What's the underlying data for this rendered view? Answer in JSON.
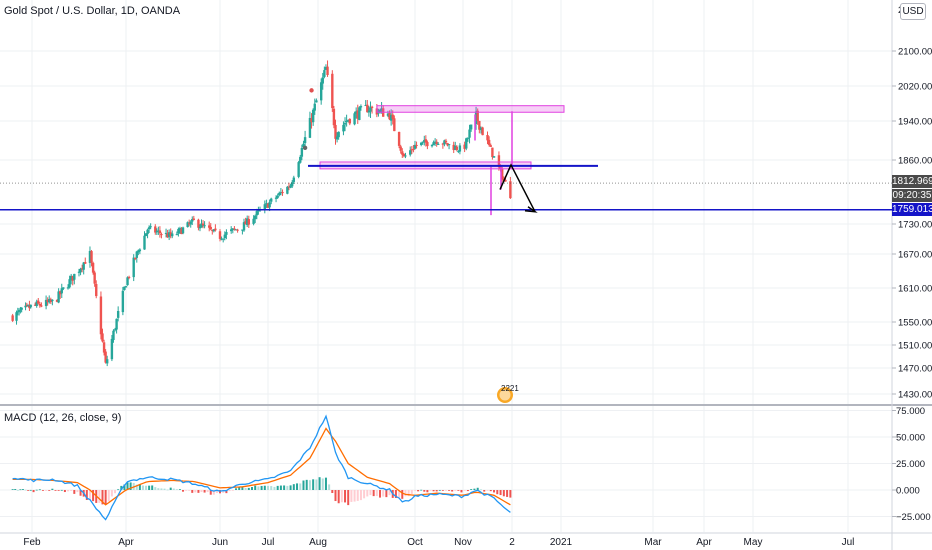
{
  "chart_title": "Gold Spot / U.S. Dollar, 1D, OANDA",
  "currency_button": "USD",
  "indicator_title": "MACD (12, 26, close, 9)",
  "last_price_tag": "1812.969",
  "countdown_tag": "09:20:35",
  "hline_price_tag": "1759.013",
  "badge_text": "2221",
  "colors": {
    "up": "#26a69a",
    "down": "#ef5350",
    "hline": "#1414c8",
    "pattern": "#e040e0",
    "macd_line": "#2196f3",
    "signal_line": "#ff6d00"
  },
  "chart_data": [
    {
      "type": "candlestick",
      "title": "Gold Spot / U.S. Dollar, 1D, OANDA",
      "x_tick_labels": [
        "Feb",
        "Apr",
        "Jun",
        "Jul",
        "Aug",
        "Oct",
        "Nov",
        "2",
        "2021",
        "Mar",
        "Apr",
        "May",
        "Jul"
      ],
      "y_tick_labels": [
        "1430.000",
        "1470.000",
        "1510.000",
        "1550.000",
        "1610.000",
        "1670.000",
        "1730.000",
        "1860.000",
        "1940.000",
        "2020.000",
        "2100.000"
      ],
      "ylim": [
        1420,
        2180
      ],
      "x": [
        "2020-01-17",
        "2020-02-01",
        "2020-02-15",
        "2020-03-01",
        "2020-03-09",
        "2020-03-19",
        "2020-04-01",
        "2020-04-15",
        "2020-05-01",
        "2020-05-15",
        "2020-06-01",
        "2020-06-15",
        "2020-07-01",
        "2020-07-15",
        "2020-07-27",
        "2020-08-06",
        "2020-08-12",
        "2020-08-20",
        "2020-09-01",
        "2020-09-15",
        "2020-09-24",
        "2020-10-01",
        "2020-10-15",
        "2020-11-01",
        "2020-11-09",
        "2020-11-20",
        "2020-11-30"
      ],
      "close": [
        1560,
        1578,
        1585,
        1640,
        1670,
        1475,
        1620,
        1720,
        1705,
        1735,
        1705,
        1725,
        1770,
        1810,
        1935,
        2060,
        1915,
        1945,
        1970,
        1955,
        1865,
        1890,
        1900,
        1880,
        1950,
        1865,
        1790
      ],
      "current_price": 1812.969,
      "horizontal_line": 1759.013,
      "annotations": {
        "support_line": 1848,
        "support_zone": [
          1842,
          1856
        ],
        "target_zone": [
          1960,
          1975
        ]
      }
    },
    {
      "type": "line",
      "title": "MACD (12, 26, close, 9)",
      "y_tick_labels": [
        "75.000",
        "50.000",
        "25.000",
        "0.000",
        "-25.000"
      ],
      "ylim": [
        -35,
        80
      ],
      "series": [
        {
          "name": "MACD",
          "values": [
            12,
            9,
            10,
            4,
            -10,
            -28,
            8,
            12,
            10,
            6,
            -2,
            6,
            10,
            18,
            40,
            70,
            35,
            12,
            6,
            0,
            -12,
            -6,
            -4,
            -6,
            0,
            -8,
            -22
          ]
        },
        {
          "name": "Signal",
          "values": [
            10,
            10,
            9,
            7,
            0,
            -14,
            0,
            8,
            9,
            8,
            2,
            3,
            7,
            14,
            30,
            58,
            46,
            25,
            12,
            6,
            -4,
            -5,
            -3,
            -5,
            -2,
            -5,
            -14
          ]
        }
      ]
    }
  ]
}
